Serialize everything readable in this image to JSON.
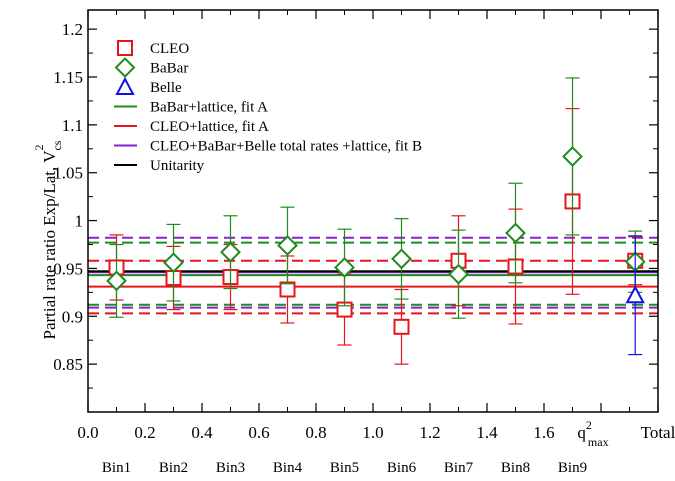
{
  "chart_data": {
    "type": "scatter",
    "ylabel": "Partial rate ratio Exp/Lat, V",
    "ylabel_sub": "cs",
    "ylabel_sup": "2",
    "xlim": [
      0,
      2.0
    ],
    "ylim": [
      0.8,
      1.22
    ],
    "x_ticks": [
      {
        "value": 0.0,
        "label": "0.0"
      },
      {
        "value": 0.2,
        "label": "0.2"
      },
      {
        "value": 0.4,
        "label": "0.4"
      },
      {
        "value": 0.6,
        "label": "0.6"
      },
      {
        "value": 0.8,
        "label": "0.8"
      },
      {
        "value": 1.0,
        "label": "1.0"
      },
      {
        "value": 1.2,
        "label": "1.2"
      },
      {
        "value": 1.4,
        "label": "1.4"
      },
      {
        "value": 1.6,
        "label": "1.6"
      },
      {
        "value": 1.8,
        "label": "q",
        "sup": "2",
        "sub": "max"
      },
      {
        "value": 2.0,
        "label": "Total"
      }
    ],
    "y_ticks": [
      {
        "value": 0.85,
        "label": "0.85"
      },
      {
        "value": 0.9,
        "label": "0.9"
      },
      {
        "value": 0.95,
        "label": "0.95"
      },
      {
        "value": 1.0,
        "label": "1"
      },
      {
        "value": 1.05,
        "label": "1.05"
      },
      {
        "value": 1.1,
        "label": "1.1"
      },
      {
        "value": 1.15,
        "label": "1.15"
      },
      {
        "value": 1.2,
        "label": "1.2"
      }
    ],
    "bins": [
      {
        "x": 0.1,
        "label": "Bin1"
      },
      {
        "x": 0.3,
        "label": "Bin2"
      },
      {
        "x": 0.5,
        "label": "Bin3"
      },
      {
        "x": 0.7,
        "label": "Bin4"
      },
      {
        "x": 0.9,
        "label": "Bin5"
      },
      {
        "x": 1.1,
        "label": "Bin6"
      },
      {
        "x": 1.3,
        "label": "Bin7"
      },
      {
        "x": 1.5,
        "label": "Bin8"
      },
      {
        "x": 1.7,
        "label": "Bin9"
      }
    ],
    "series": [
      {
        "name": "CLEO",
        "marker": "square",
        "color": "#e8141c",
        "points": [
          {
            "x": 0.1,
            "y": 0.951,
            "err": 0.034
          },
          {
            "x": 0.3,
            "y": 0.94,
            "err": 0.033
          },
          {
            "x": 0.5,
            "y": 0.941,
            "err": 0.034
          },
          {
            "x": 0.7,
            "y": 0.928,
            "err": 0.035
          },
          {
            "x": 0.9,
            "y": 0.907,
            "err": 0.037
          },
          {
            "x": 1.1,
            "y": 0.889,
            "err": 0.039
          },
          {
            "x": 1.3,
            "y": 0.958,
            "err": 0.047
          },
          {
            "x": 1.5,
            "y": 0.952,
            "err": 0.06
          },
          {
            "x": 1.7,
            "y": 1.02,
            "err": 0.097
          },
          {
            "x": 1.92,
            "y": 0.958,
            "err": 0.025
          }
        ]
      },
      {
        "name": "BaBar",
        "marker": "diamond",
        "color": "#1d8c1d",
        "points": [
          {
            "x": 0.1,
            "y": 0.937,
            "err": 0.038
          },
          {
            "x": 0.3,
            "y": 0.956,
            "err": 0.04
          },
          {
            "x": 0.5,
            "y": 0.967,
            "err": 0.038
          },
          {
            "x": 0.7,
            "y": 0.974,
            "err": 0.04
          },
          {
            "x": 0.9,
            "y": 0.951,
            "err": 0.04
          },
          {
            "x": 1.1,
            "y": 0.96,
            "err": 0.042
          },
          {
            "x": 1.3,
            "y": 0.944,
            "err": 0.046
          },
          {
            "x": 1.5,
            "y": 0.987,
            "err": 0.052
          },
          {
            "x": 1.7,
            "y": 1.067,
            "err": 0.082
          },
          {
            "x": 1.92,
            "y": 0.957,
            "err": 0.032
          }
        ]
      },
      {
        "name": "Belle",
        "marker": "triangle",
        "color": "#1010e8",
        "points": [
          {
            "x": 1.92,
            "y": 0.922,
            "err": 0.062
          }
        ]
      }
    ],
    "lines": [
      {
        "name": "BaBar+lattice, fit A",
        "color": "#1d8c1d",
        "central": 0.943,
        "band": [
          0.912,
          0.977
        ]
      },
      {
        "name": "CLEO+lattice, fit A",
        "color": "#e8141c",
        "central": 0.931,
        "band": [
          0.903,
          0.958
        ]
      },
      {
        "name": "CLEO+BaBar+Belle total rates +lattice, fit B",
        "color": "#8a1fd6",
        "central": 0.946,
        "band": [
          0.909,
          0.982
        ]
      },
      {
        "name": "Unitarity",
        "color": "#000000",
        "central": 0.947,
        "band": null
      }
    ],
    "legend_position": "top-left"
  }
}
